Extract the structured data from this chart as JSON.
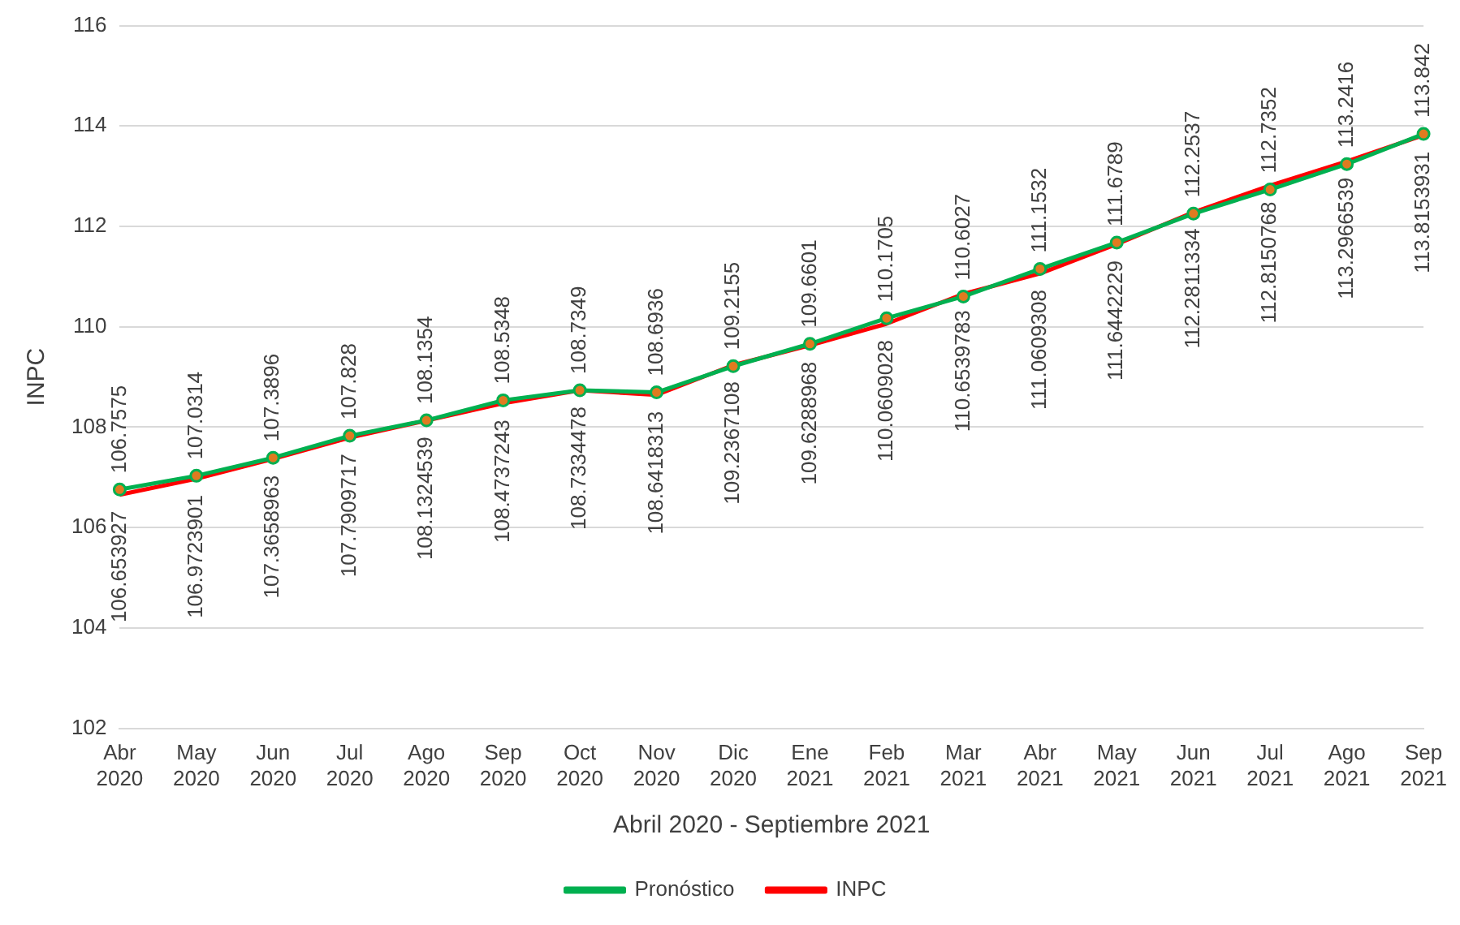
{
  "chart_data": {
    "type": "line",
    "xlabel": "Abril 2020 - Septiembre 2021",
    "ylabel": "INPC",
    "categories": [
      "Abr 2020",
      "May 2020",
      "Jun 2020",
      "Jul 2020",
      "Ago 2020",
      "Sep 2020",
      "Oct 2020",
      "Nov 2020",
      "Dic 2020",
      "Ene 2021",
      "Feb 2021",
      "Mar 2021",
      "Abr 2021",
      "May 2021",
      "Jun 2021",
      "Jul 2021",
      "Ago 2021",
      "Sep 2021"
    ],
    "series": [
      {
        "name": "INPC",
        "color": "#ff0000",
        "marker": "none",
        "values": [
          106.653927,
          106.9723901,
          107.3658963,
          107.7909717,
          108.1324539,
          108.4737243,
          108.7334478,
          108.6418313,
          109.2367108,
          109.6288968,
          110.0609028,
          110.6539783,
          111.0609308,
          111.6442229,
          112.2811334,
          112.8150768,
          113.2966539,
          113.8153931
        ]
      },
      {
        "name": "Pronóstico",
        "color": "#00b050",
        "marker": "circle",
        "values": [
          106.7575,
          107.0314,
          107.3896,
          107.828,
          108.1354,
          108.5348,
          108.7349,
          108.6936,
          109.2155,
          109.6601,
          110.1705,
          110.6027,
          111.1532,
          111.6789,
          112.2537,
          112.7352,
          113.2416,
          113.842
        ]
      }
    ],
    "ylim": [
      102,
      116
    ],
    "yticks": [
      102,
      104,
      106,
      108,
      110,
      112,
      114,
      116
    ],
    "grid": "y",
    "legend": "bottom",
    "data_labels": true,
    "line_style": "solid"
  }
}
